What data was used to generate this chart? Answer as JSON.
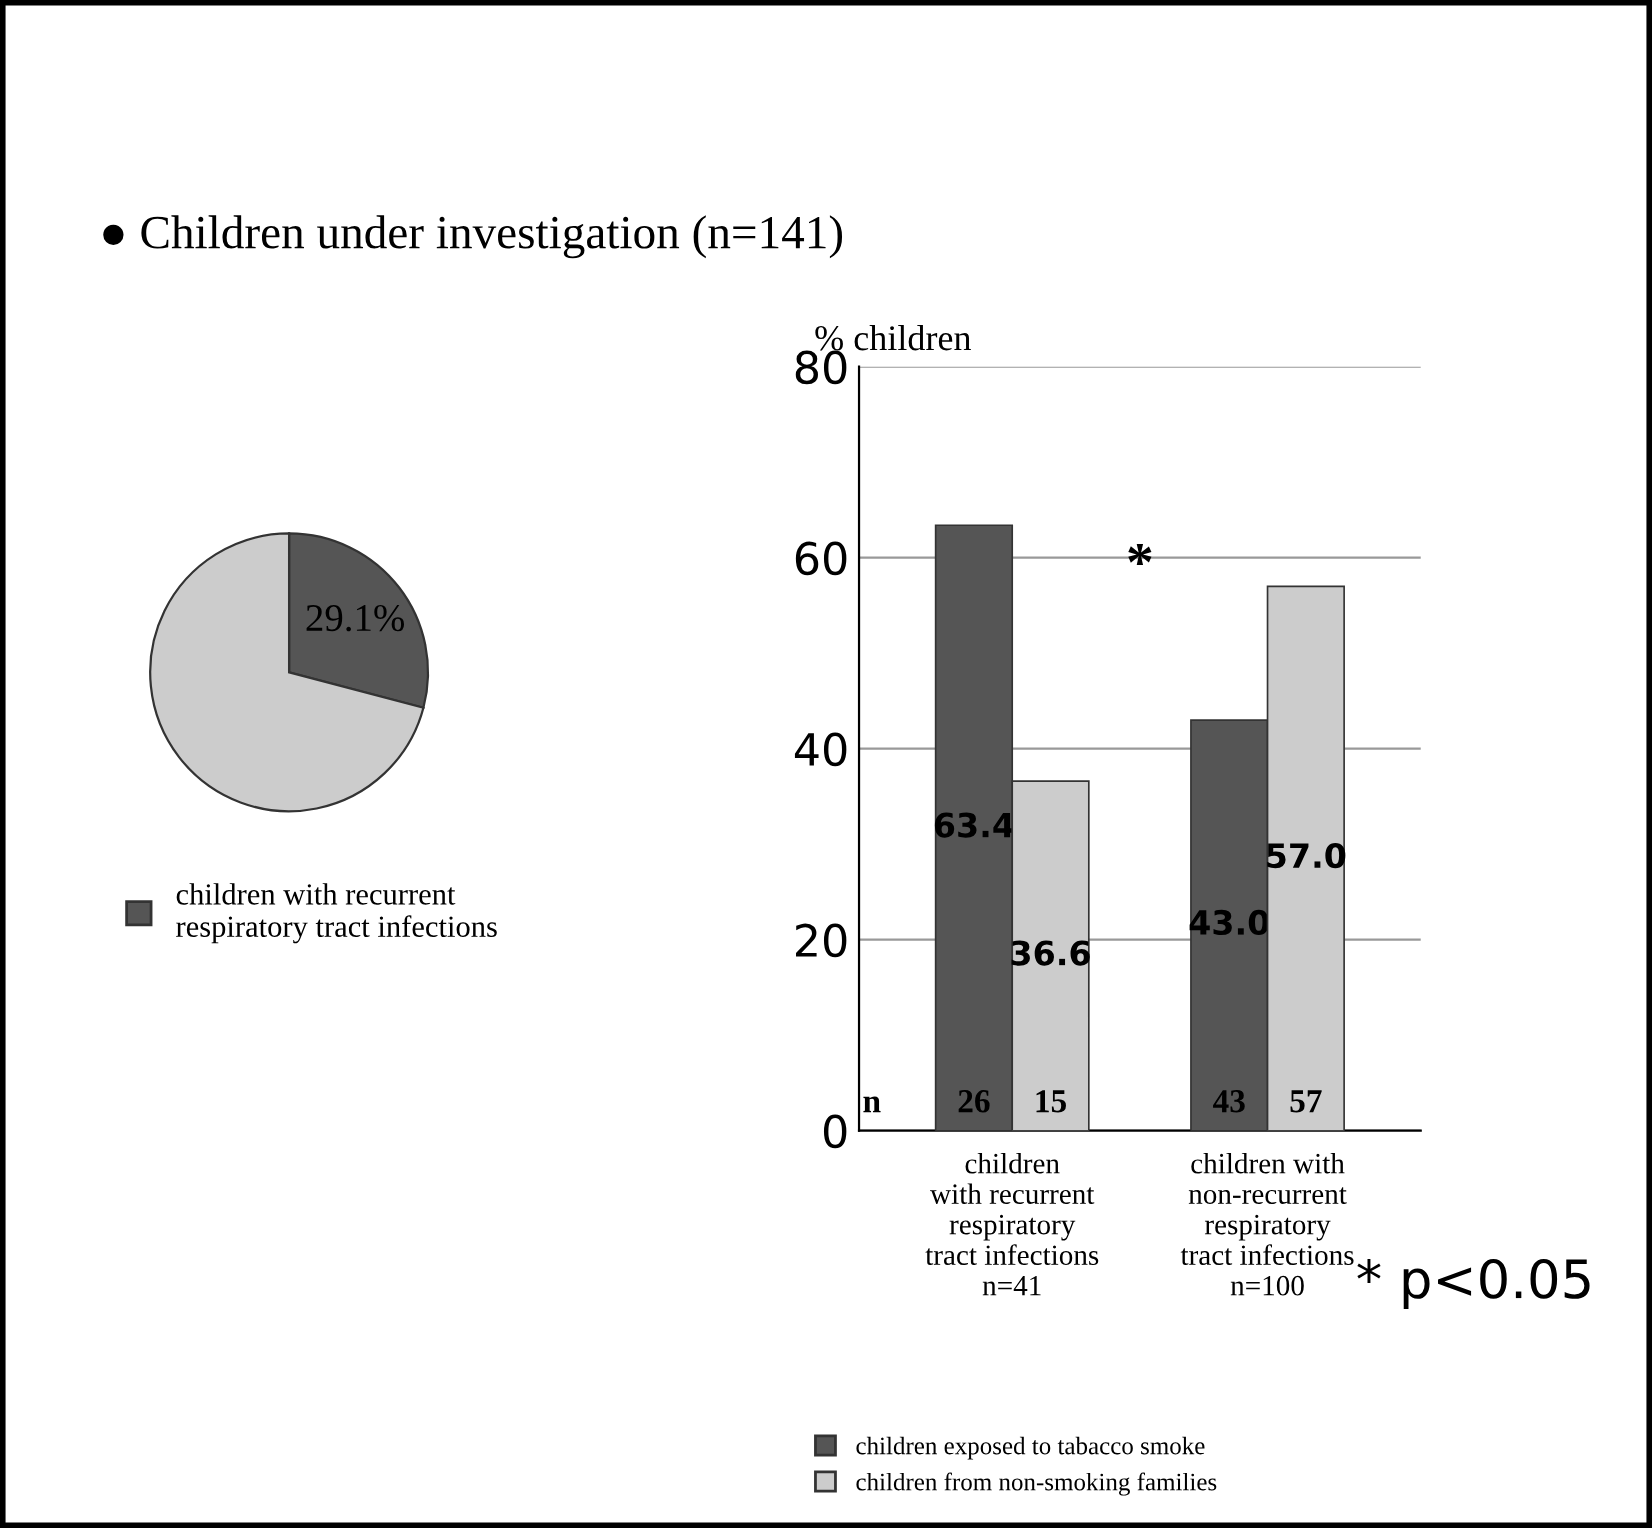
{
  "chart_data": [
    {
      "type": "pie",
      "title": "● Children under investigation (n=141)",
      "categories": [
        "children with recurrent respiratory tract infections",
        null
      ],
      "values": [
        29.1,
        70.9
      ],
      "colors": [
        "#555555",
        "#cccccc"
      ],
      "value_labels": [
        "29.1%",
        null
      ],
      "legend": "bottom"
    },
    {
      "type": "bar",
      "ylabel": "% children",
      "categories": [
        "children\nwith recurrent\nrespiratory\ntract infections\nn=41",
        "children with\nnon-recurrent\nrespiratory\ntract infections\nn=100"
      ],
      "series": [
        {
          "name": "children exposed to tabacco smoke",
          "color": "#555555",
          "values": [
            63.4,
            43.0
          ],
          "value_labels": [
            "63.4",
            "43.0"
          ]
        },
        {
          "name": "children from non-smoking families",
          "color": "#cccccc",
          "values": [
            36.6,
            57.0
          ],
          "value_labels": [
            "36.6",
            "57.0"
          ]
        }
      ],
      "ylim": [
        0,
        80
      ],
      "yticks": [
        0,
        20,
        40,
        60,
        80
      ],
      "grid": "y",
      "legend": "bottom",
      "annotations": [
        "n",
        "26",
        "15",
        "43",
        "57",
        "*",
        "* p<0.05"
      ]
    }
  ]
}
